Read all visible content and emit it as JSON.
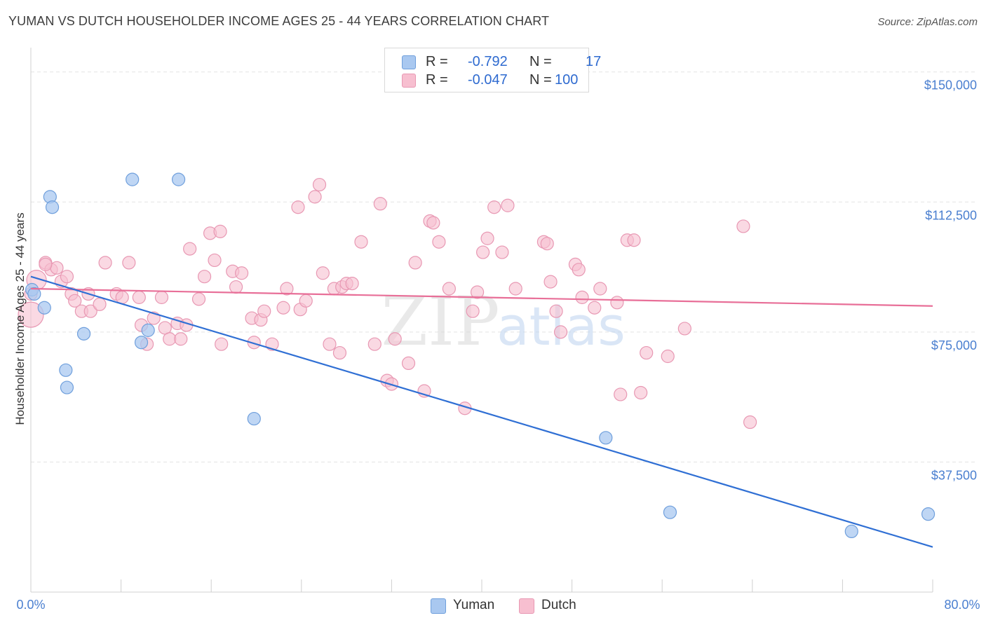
{
  "title": "YUMAN VS DUTCH HOUSEHOLDER INCOME AGES 25 - 44 YEARS CORRELATION CHART",
  "source": "Source: ZipAtlas.com",
  "legend": {
    "yuman": {
      "r_label": "R =",
      "r_value": "-0.792",
      "n_label": "N =",
      "n_value": "17"
    },
    "dutch": {
      "r_label": "R =",
      "r_value": "-0.047",
      "n_label": "N =",
      "n_value": "100"
    }
  },
  "bottom_legend": {
    "yuman": "Yuman",
    "dutch": "Dutch"
  },
  "colors": {
    "yuman_fill": "#a9c8f0",
    "yuman_stroke": "#6f9fdc",
    "yuman_line": "#2f6fd4",
    "dutch_fill": "#f7bfd0",
    "dutch_stroke": "#e898b3",
    "dutch_line": "#e86f98",
    "grid": "#e3e3e3",
    "axis_label": "#4a7fd0"
  },
  "watermark": {
    "zip": "ZIP",
    "atlas": "atlas"
  },
  "chart_data": {
    "type": "scatter",
    "title": "YUMAN VS DUTCH HOUSEHOLDER INCOME AGES 25 - 44 YEARS CORRELATION CHART",
    "xlabel": "",
    "ylabel": "Householder Income Ages 25 - 44 years",
    "xlim": [
      0,
      80
    ],
    "ylim": [
      0,
      155000
    ],
    "x_tick_labels": [
      "0.0%",
      "80.0%"
    ],
    "y_ticks": [
      37500,
      75000,
      112500,
      150000
    ],
    "y_tick_labels": [
      "$37,500",
      "$75,000",
      "$112,500",
      "$150,000"
    ],
    "series": [
      {
        "name": "Yuman",
        "points": [
          [
            0.1,
            87200
          ],
          [
            0.3,
            86000
          ],
          [
            1.2,
            82000
          ],
          [
            1.7,
            114000
          ],
          [
            1.9,
            111000
          ],
          [
            4.7,
            74500
          ],
          [
            3.1,
            64000
          ],
          [
            3.2,
            59000
          ],
          [
            9.0,
            119000
          ],
          [
            13.1,
            119000
          ],
          [
            9.8,
            72000
          ],
          [
            10.4,
            75500
          ],
          [
            19.8,
            50000
          ],
          [
            51.0,
            44500
          ],
          [
            56.7,
            23000
          ],
          [
            72.8,
            17500
          ],
          [
            79.6,
            22500
          ]
        ],
        "trend": {
          "x": [
            0,
            80
          ],
          "y": [
            91000,
            13000
          ]
        }
      },
      {
        "name": "Dutch",
        "points": [
          [
            0.0,
            80000
          ],
          [
            0.5,
            90000
          ],
          [
            1.3,
            95000
          ],
          [
            1.8,
            93000
          ],
          [
            2.3,
            93500
          ],
          [
            2.7,
            89600
          ],
          [
            3.2,
            91000
          ],
          [
            3.6,
            86000
          ],
          [
            3.9,
            84000
          ],
          [
            4.5,
            81000
          ],
          [
            5.1,
            86000
          ],
          [
            5.3,
            81000
          ],
          [
            6.1,
            83000
          ],
          [
            6.6,
            95000
          ],
          [
            7.6,
            86000
          ],
          [
            8.1,
            85000
          ],
          [
            8.7,
            95000
          ],
          [
            9.6,
            85000
          ],
          [
            9.8,
            77000
          ],
          [
            10.3,
            71500
          ],
          [
            10.9,
            79000
          ],
          [
            11.6,
            85000
          ],
          [
            11.9,
            76200
          ],
          [
            12.3,
            73000
          ],
          [
            13.0,
            77500
          ],
          [
            13.3,
            73000
          ],
          [
            13.8,
            77000
          ],
          [
            14.1,
            99000
          ],
          [
            14.9,
            84500
          ],
          [
            15.4,
            91000
          ],
          [
            15.9,
            103500
          ],
          [
            16.3,
            95700
          ],
          [
            16.8,
            104000
          ],
          [
            16.9,
            71500
          ],
          [
            17.9,
            92500
          ],
          [
            18.2,
            88000
          ],
          [
            18.7,
            92000
          ],
          [
            19.6,
            79000
          ],
          [
            19.8,
            72000
          ],
          [
            20.4,
            78500
          ],
          [
            20.7,
            81000
          ],
          [
            21.4,
            71500
          ],
          [
            22.4,
            82000
          ],
          [
            22.7,
            87500
          ],
          [
            23.7,
            111000
          ],
          [
            23.9,
            81500
          ],
          [
            24.4,
            84000
          ],
          [
            25.2,
            114000
          ],
          [
            25.6,
            117500
          ],
          [
            25.9,
            92000
          ],
          [
            26.5,
            71500
          ],
          [
            26.9,
            87500
          ],
          [
            27.4,
            69000
          ],
          [
            27.6,
            88000
          ],
          [
            28.0,
            89000
          ],
          [
            28.5,
            89000
          ],
          [
            29.3,
            101000
          ],
          [
            30.5,
            71500
          ],
          [
            31.0,
            112000
          ],
          [
            31.6,
            61000
          ],
          [
            32.0,
            60000
          ],
          [
            32.3,
            73000
          ],
          [
            33.5,
            66000
          ],
          [
            34.1,
            95000
          ],
          [
            34.9,
            58000
          ],
          [
            35.4,
            107000
          ],
          [
            35.7,
            106500
          ],
          [
            36.2,
            101000
          ],
          [
            37.1,
            87500
          ],
          [
            38.5,
            53000
          ],
          [
            39.2,
            81000
          ],
          [
            39.6,
            86500
          ],
          [
            40.1,
            98000
          ],
          [
            40.5,
            102000
          ],
          [
            41.1,
            111000
          ],
          [
            41.8,
            98000
          ],
          [
            42.3,
            111500
          ],
          [
            43.0,
            87500
          ],
          [
            45.5,
            101000
          ],
          [
            45.8,
            100500
          ],
          [
            46.1,
            89500
          ],
          [
            46.6,
            81000
          ],
          [
            47.0,
            75000
          ],
          [
            48.3,
            94500
          ],
          [
            48.6,
            93000
          ],
          [
            48.9,
            85000
          ],
          [
            50.0,
            82000
          ],
          [
            50.5,
            87500
          ],
          [
            52.0,
            83500
          ],
          [
            52.3,
            57000
          ],
          [
            52.9,
            101500
          ],
          [
            53.5,
            101500
          ],
          [
            54.1,
            57500
          ],
          [
            54.6,
            69000
          ],
          [
            56.5,
            68000
          ],
          [
            58.0,
            76000
          ],
          [
            63.2,
            105500
          ],
          [
            63.8,
            49000
          ],
          [
            0.0,
            86000
          ],
          [
            1.3,
            94500
          ]
        ],
        "trend": {
          "x": [
            0,
            80
          ],
          "y": [
            87500,
            82500
          ]
        }
      }
    ]
  }
}
